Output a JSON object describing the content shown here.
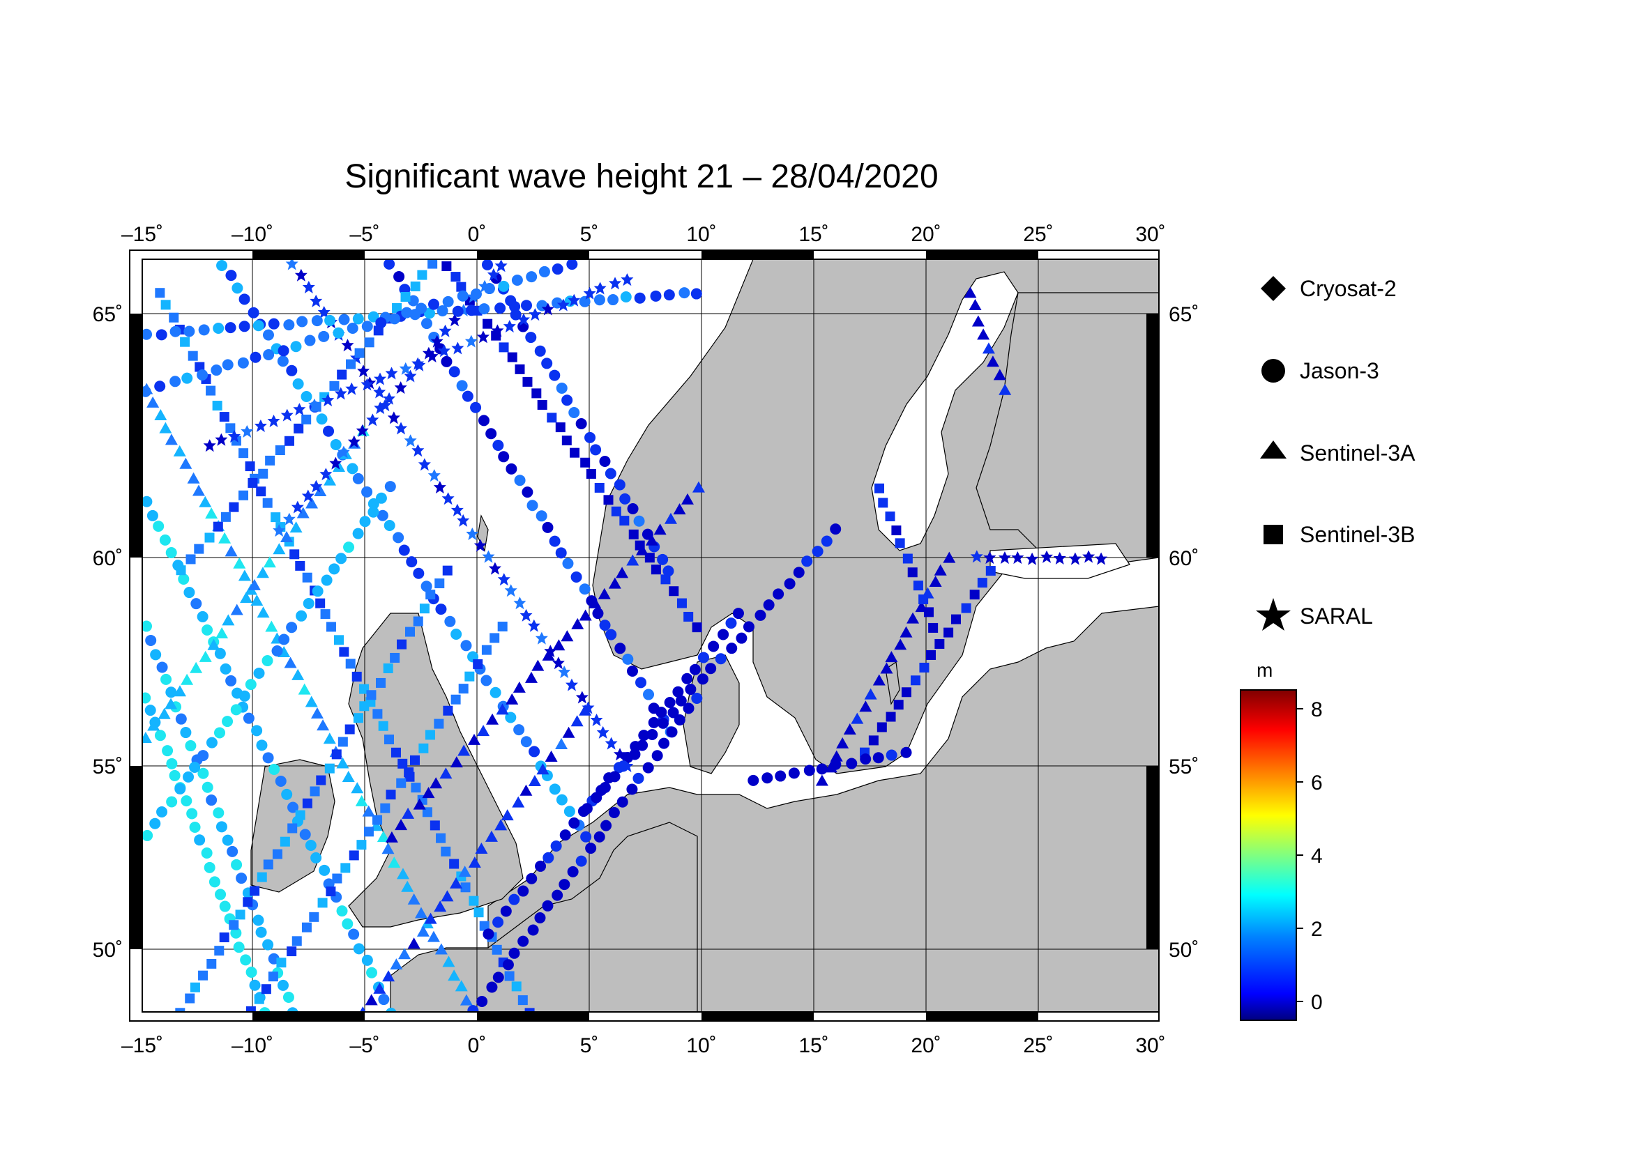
{
  "title": "Significant wave height 21 – 28/04/2020",
  "map": {
    "lon_ticks": [
      "–15˚",
      "–10˚",
      "–5˚",
      "0˚",
      "5˚",
      "10˚",
      "15˚",
      "20˚",
      "25˚",
      "30˚"
    ],
    "lat_ticks": [
      "50˚",
      "55˚",
      "60˚",
      "65˚"
    ],
    "land_color": "#bebebe",
    "sea_color": "#ffffff"
  },
  "legend": {
    "items": [
      {
        "label": "Cryosat-2",
        "icon": "diamond"
      },
      {
        "label": "Jason-3",
        "icon": "circle"
      },
      {
        "label": "Sentinel-3A",
        "icon": "triangle"
      },
      {
        "label": "Sentinel-3B",
        "icon": "square"
      },
      {
        "label": "SARAL",
        "icon": "star"
      }
    ]
  },
  "colorbar": {
    "unit": "m",
    "ticks": [
      "8",
      "6",
      "4",
      "2",
      "0"
    ]
  },
  "tracks": {
    "description_colors": [
      "#0000c8",
      "#0a32f0",
      "#1e78ff",
      "#14b4ff",
      "#1ee6f0"
    ]
  }
}
